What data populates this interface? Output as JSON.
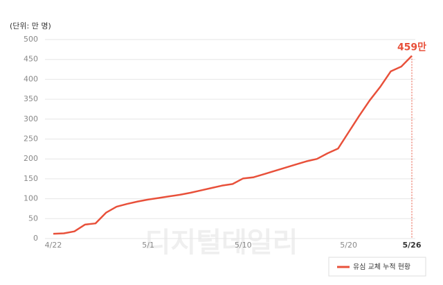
{
  "chart_data": {
    "type": "line",
    "unit_label": "(단위: 만 명)",
    "x": [
      "4/22",
      "4/23",
      "4/24",
      "4/25",
      "4/26",
      "4/27",
      "4/28",
      "4/29",
      "4/30",
      "5/1",
      "5/2",
      "5/3",
      "5/4",
      "5/5",
      "5/6",
      "5/7",
      "5/8",
      "5/9",
      "5/10",
      "5/11",
      "5/12",
      "5/13",
      "5/14",
      "5/15",
      "5/16",
      "5/17",
      "5/18",
      "5/19",
      "5/20",
      "5/21",
      "5/22",
      "5/23",
      "5/24",
      "5/25",
      "5/26"
    ],
    "series": [
      {
        "name": "유심 교체 누적 현황",
        "color": "#e8503a",
        "values": [
          12,
          13,
          18,
          35,
          38,
          65,
          80,
          87,
          93,
          98,
          102,
          106,
          110,
          115,
          121,
          127,
          133,
          137,
          151,
          154,
          162,
          170,
          178,
          186,
          194,
          200,
          214,
          226,
          267,
          308,
          347,
          381,
          420,
          432,
          459
        ]
      }
    ],
    "ylim": [
      0,
      500
    ],
    "yticks": [
      0,
      50,
      100,
      150,
      200,
      250,
      300,
      350,
      400,
      450,
      500
    ],
    "xticks": [
      "4/22",
      "5/1",
      "5/10",
      "5/20",
      "5/26"
    ],
    "annotation": "459만",
    "watermark": "디지털데일리",
    "grid": true
  }
}
